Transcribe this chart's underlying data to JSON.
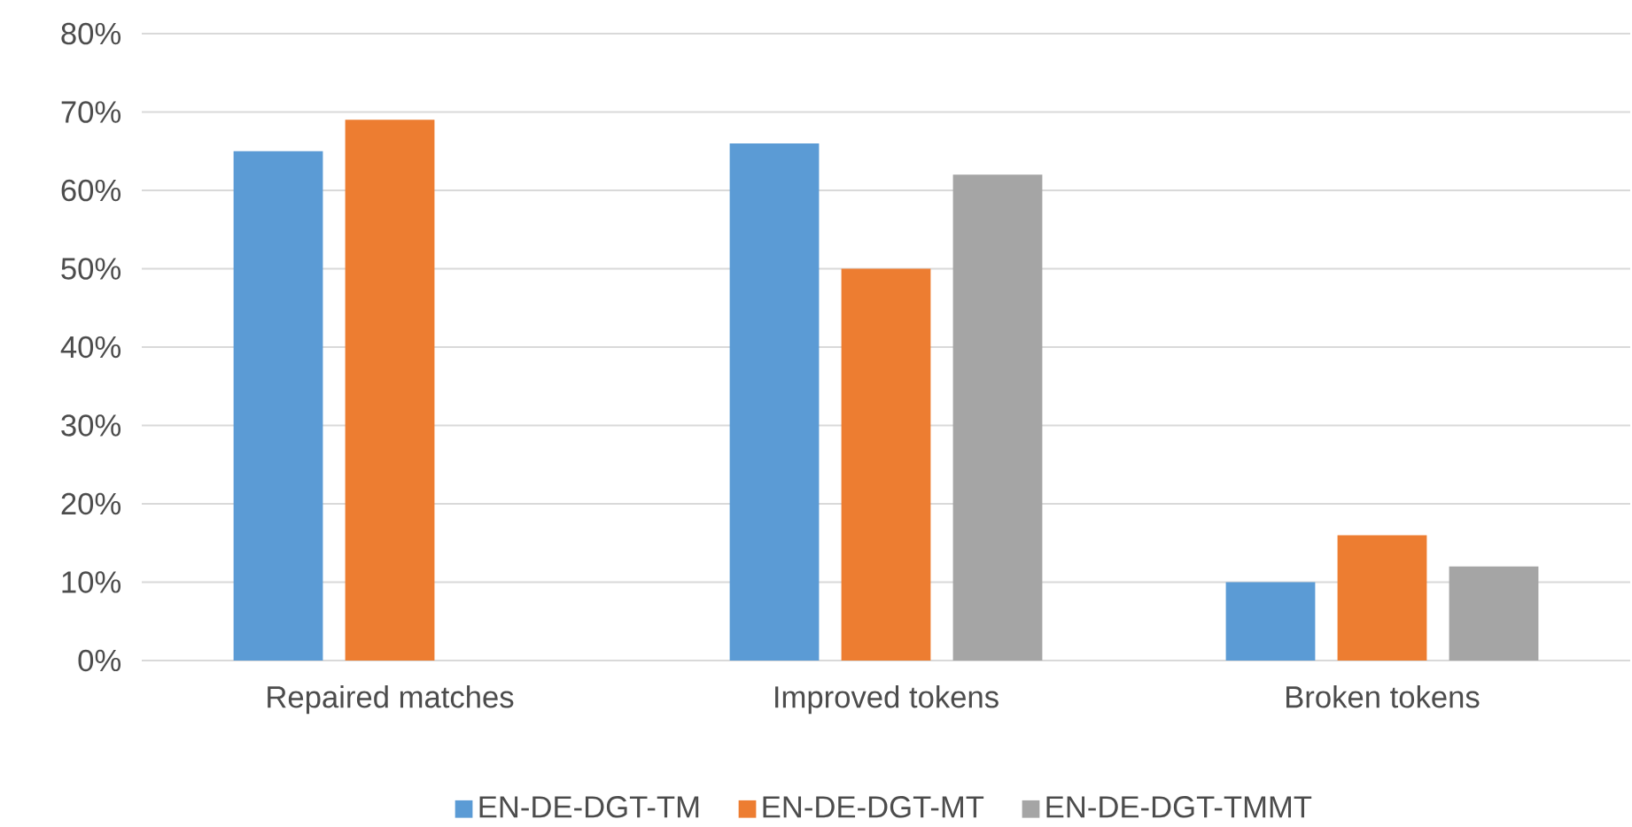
{
  "chart_data": {
    "type": "bar",
    "categories": [
      "Repaired matches",
      "Improved tokens",
      "Broken tokens"
    ],
    "series": [
      {
        "name": "EN-DE-DGT-TM",
        "color": "#5b9bd5",
        "values": [
          65,
          66,
          10
        ]
      },
      {
        "name": "EN-DE-DGT-MT",
        "color": "#ed7d31",
        "values": [
          69,
          50,
          16
        ]
      },
      {
        "name": "EN-DE-DGT-TMMT",
        "color": "#a5a5a5",
        "values": [
          null,
          62,
          12
        ]
      }
    ],
    "ylim": [
      0,
      80
    ],
    "yticks": [
      {
        "value": 0,
        "label": "0%"
      },
      {
        "value": 10,
        "label": "10%"
      },
      {
        "value": 20,
        "label": "20%"
      },
      {
        "value": 30,
        "label": "30%"
      },
      {
        "value": 40,
        "label": "40%"
      },
      {
        "value": 50,
        "label": "50%"
      },
      {
        "value": 60,
        "label": "60%"
      },
      {
        "value": 70,
        "label": "70%"
      },
      {
        "value": 80,
        "label": "80%"
      }
    ],
    "grid": "y",
    "legend": "bottom"
  }
}
